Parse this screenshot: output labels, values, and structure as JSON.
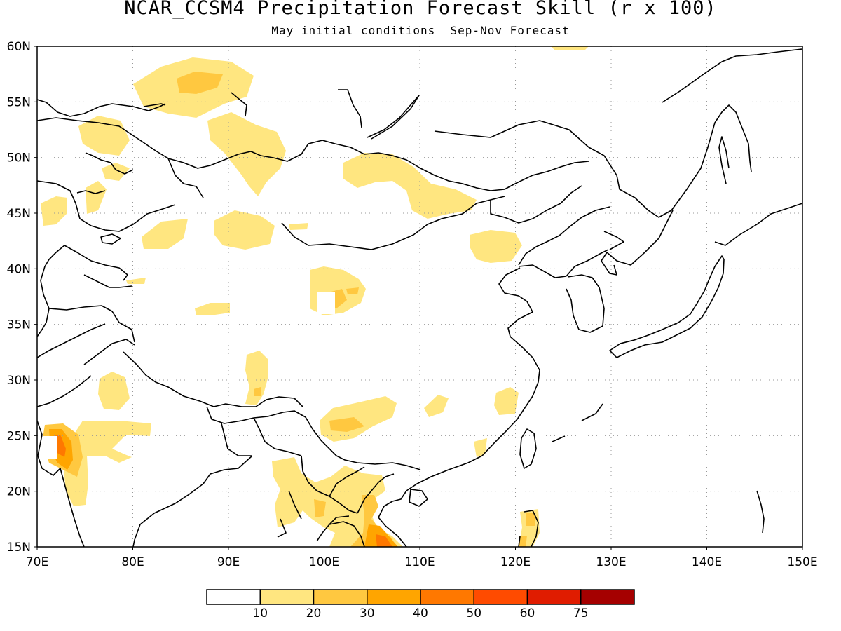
{
  "title": "NCAR_CCSM4 Precipitation Forecast Skill (r x 100)",
  "subtitle": "May initial conditions  Sep-Nov Forecast",
  "map": {
    "lon_range": [
      70,
      150
    ],
    "lat_range": [
      15,
      60
    ],
    "lon_ticks": [
      "70E",
      "80E",
      "90E",
      "100E",
      "110E",
      "120E",
      "130E",
      "140E",
      "150E"
    ],
    "lat_ticks": [
      "15N",
      "20N",
      "25N",
      "30N",
      "35N",
      "40N",
      "45N",
      "50N",
      "55N",
      "60N"
    ],
    "grid": true,
    "grid_style": "dotted",
    "coastlines": true,
    "country_borders": true
  },
  "colorbar": {
    "labels": [
      "10",
      "20",
      "30",
      "40",
      "50",
      "60",
      "75"
    ],
    "colors": [
      "#ffffff",
      "#ffe680",
      "#ffc840",
      "#ffa500",
      "#ff7800",
      "#ff4b00",
      "#e01c00",
      "#a50000"
    ],
    "position": "bottom"
  },
  "chart_data": {
    "type": "heatmap",
    "title": "NCAR_CCSM4 Precipitation Forecast Skill (r x 100)",
    "subtitle": "May initial conditions  Sep-Nov Forecast",
    "variable": "precipitation forecast skill (r x 100)",
    "levels": [
      10,
      20,
      30,
      40,
      50,
      60,
      75
    ],
    "region": {
      "lon": [
        70,
        150
      ],
      "lat": [
        15,
        60
      ]
    },
    "notable_regions": [
      {
        "area_lon": [
          70,
          75
        ],
        "area_lat": [
          20,
          26
        ],
        "max_level": 50
      },
      {
        "area_lon": [
          103,
          108
        ],
        "area_lat": [
          15,
          18
        ],
        "max_level": 40
      },
      {
        "area_lon": [
          85,
          88
        ],
        "area_lat": [
          56,
          58
        ],
        "max_level": 30
      },
      {
        "area_lon": [
          100,
          102
        ],
        "area_lat": [
          36,
          38
        ],
        "max_level": 30
      },
      {
        "area_lon": [
          101,
          104
        ],
        "area_lat": [
          25,
          27
        ],
        "max_level": 30
      }
    ]
  }
}
